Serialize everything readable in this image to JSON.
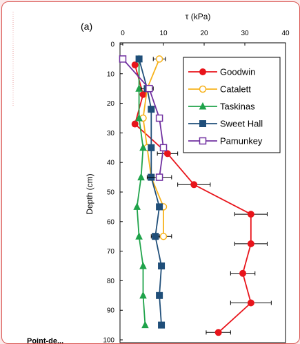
{
  "chart_data": {
    "type": "scatter",
    "panel_label": "(a)",
    "xlabel": "τ (kPa)",
    "ylabel": "Depth (cm)",
    "xlim": [
      0,
      40
    ],
    "ylim": [
      0,
      100
    ],
    "x_axis_position": "top",
    "y_inverted": true,
    "x_ticks": [
      0,
      10,
      20,
      30,
      40
    ],
    "y_ticks": [
      0,
      10,
      20,
      30,
      40,
      50,
      60,
      70,
      80,
      90,
      100
    ],
    "grid": false,
    "legend_position": "top-right",
    "series": [
      {
        "name": "Goodwin",
        "color": "#e8141b",
        "marker": "circle-filled",
        "points": [
          {
            "x": 3,
            "y": 7
          },
          {
            "x": 5,
            "y": 17
          },
          {
            "x": 3,
            "y": 27
          },
          {
            "x": 11,
            "y": 37,
            "xerr": 2.5
          },
          {
            "x": 17.5,
            "y": 47.5,
            "xerr": 4
          },
          {
            "x": 31.5,
            "y": 57.5,
            "xerr": 4
          },
          {
            "x": 31.5,
            "y": 67.5,
            "xerr": 4
          },
          {
            "x": 29.5,
            "y": 77.5,
            "xerr": 3
          },
          {
            "x": 31.5,
            "y": 87.5,
            "xerr": 5
          },
          {
            "x": 23.5,
            "y": 97.5,
            "xerr": 3
          }
        ]
      },
      {
        "name": "Catalett",
        "color": "#f7b21b",
        "marker": "circle-open",
        "points": [
          {
            "x": 9,
            "y": 5,
            "xerr": 1.5
          },
          {
            "x": 6,
            "y": 15
          },
          {
            "x": 5,
            "y": 25
          },
          {
            "x": 6,
            "y": 35
          },
          {
            "x": 7,
            "y": 45
          },
          {
            "x": 10,
            "y": 55
          },
          {
            "x": 10,
            "y": 65,
            "xerr": 2
          }
        ]
      },
      {
        "name": "Taskinas",
        "color": "#1fa34a",
        "marker": "triangle-filled",
        "points": [
          {
            "x": 4,
            "y": 5
          },
          {
            "x": 4,
            "y": 15
          },
          {
            "x": 4,
            "y": 25
          },
          {
            "x": 5,
            "y": 35
          },
          {
            "x": 4.5,
            "y": 45
          },
          {
            "x": 3.5,
            "y": 55
          },
          {
            "x": 4,
            "y": 65
          },
          {
            "x": 5,
            "y": 75
          },
          {
            "x": 5,
            "y": 85
          },
          {
            "x": 5.5,
            "y": 95
          }
        ]
      },
      {
        "name": "Sweet Hall",
        "color": "#1f4e79",
        "marker": "square-filled",
        "points": [
          {
            "x": 4,
            "y": 5
          },
          {
            "x": 6,
            "y": 15,
            "xerr": 1.5
          },
          {
            "x": 7,
            "y": 22
          },
          {
            "x": 7,
            "y": 35
          },
          {
            "x": 7,
            "y": 45
          },
          {
            "x": 9,
            "y": 55
          },
          {
            "x": 8,
            "y": 65,
            "xerr": 1
          },
          {
            "x": 9.5,
            "y": 75
          },
          {
            "x": 9,
            "y": 85
          },
          {
            "x": 9.5,
            "y": 95
          }
        ]
      },
      {
        "name": "Pamunkey",
        "color": "#7030a0",
        "marker": "square-open",
        "points": [
          {
            "x": 0,
            "y": 5
          },
          {
            "x": 6.5,
            "y": 15
          },
          {
            "x": 9,
            "y": 25
          },
          {
            "x": 10,
            "y": 35
          },
          {
            "x": 9,
            "y": 45,
            "xerr": 3
          }
        ]
      }
    ]
  },
  "side_text": "Point-de..."
}
